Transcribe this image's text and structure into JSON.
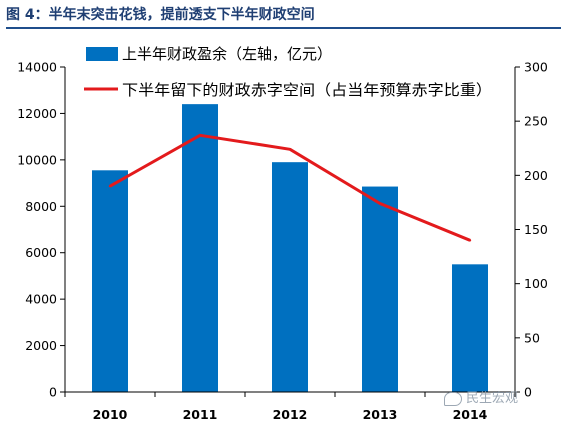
{
  "figure_title": "图 4：半年末突击花钱，提前透支下半年财政空间",
  "watermark": {
    "text": "民生宏观",
    "icon": "wechat-icon"
  },
  "colors": {
    "bar": "#0070c0",
    "line": "#e31a1c",
    "axis": "#000000",
    "title": "#1f3f73"
  },
  "chart_data": {
    "type": "bar",
    "categories": [
      "2010",
      "2011",
      "2012",
      "2013",
      "2014"
    ],
    "series": [
      {
        "name": "上半年财政盈余（左轴，亿元）",
        "type": "bar",
        "axis": "left",
        "values": [
          9550,
          12400,
          9900,
          8850,
          5500
        ]
      },
      {
        "name": "下半年留下的财政赤字空间（占当年预算赤字比重）",
        "type": "line",
        "axis": "right",
        "values": [
          190,
          237,
          224,
          174,
          140
        ]
      }
    ],
    "y_left": {
      "lim": [
        0,
        14000
      ],
      "ticks": [
        "0",
        "2000",
        "4000",
        "6000",
        "8000",
        "10000",
        "12000",
        "14000"
      ]
    },
    "y_right": {
      "lim": [
        0,
        300
      ],
      "ticks": [
        "0",
        "50",
        "100",
        "150",
        "200",
        "250",
        "300"
      ]
    },
    "legend_position": "top-left",
    "grid": false
  }
}
